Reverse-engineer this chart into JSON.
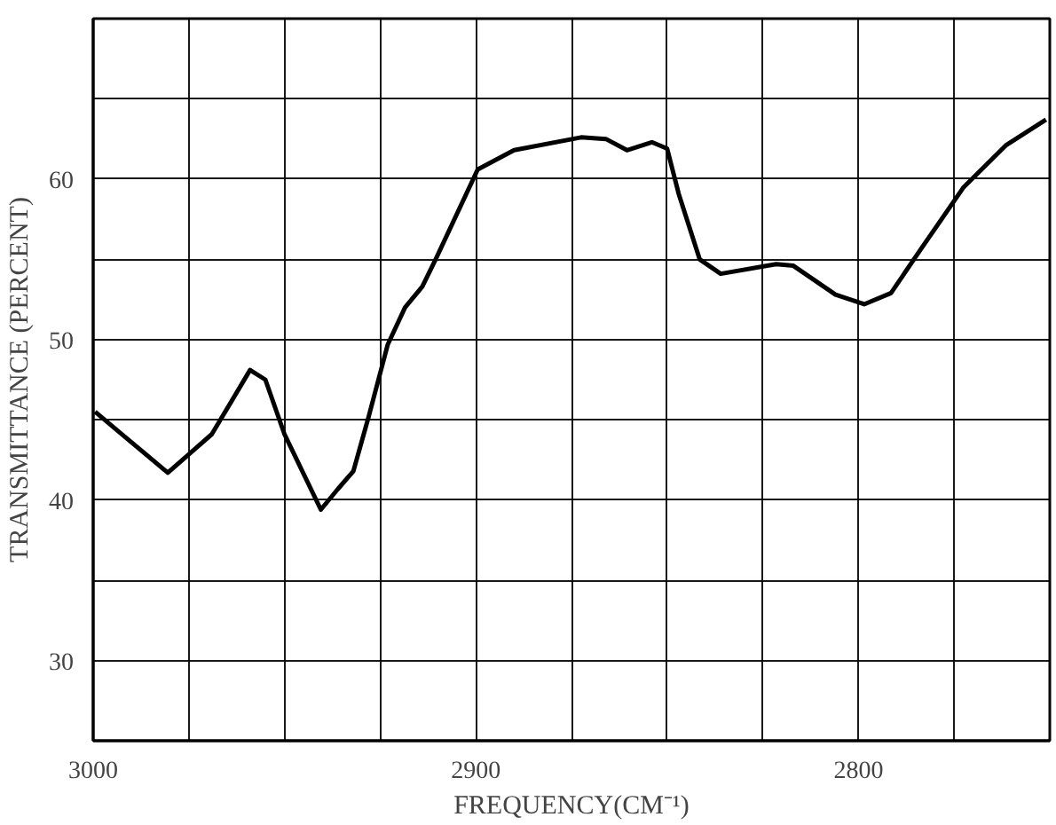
{
  "chart_data": {
    "type": "line",
    "xlabel": "FREQUENCY(CM⁻¹)",
    "ylabel": "TRANSMITTANCE (PERCENT)",
    "xlim": [
      3000,
      2750
    ],
    "ylim": [
      25,
      70
    ],
    "xticks": [
      3000,
      {
        "value": 2975,
        "label": null
      },
      {
        "value": 2950,
        "label": null
      },
      {
        "value": 2925,
        "label": null
      },
      2900,
      {
        "value": 2875,
        "label": null
      },
      {
        "value": 2850,
        "label": null
      },
      {
        "value": 2825,
        "label": null
      },
      2800,
      {
        "value": 2775,
        "label": null
      }
    ],
    "yticks": [
      {
        "value": 25,
        "label": null
      },
      30,
      {
        "value": 35,
        "label": null
      },
      40,
      {
        "value": 45,
        "label": null
      },
      50,
      {
        "value": 55,
        "label": null
      },
      60,
      {
        "value": 65,
        "label": null
      },
      {
        "value": 70,
        "label": null
      }
    ],
    "grid": true,
    "marker": "none",
    "line_style": "solid",
    "series": [
      {
        "color": "#000000",
        "x": [
          2999.5,
          2994,
          2980.5,
          2969,
          2959,
          2955,
          2950,
          2940.5,
          2936,
          2932,
          2928,
          2923,
          2918.5,
          2914,
          2910.5,
          2899.5,
          2890,
          2872.5,
          2866,
          2860.5,
          2854,
          2850,
          2847,
          2841.5,
          2836,
          2821.5,
          2817,
          2806,
          2798.5,
          2791.5,
          2783.5,
          2772.5,
          2761.5,
          2751
        ],
        "values": [
          45.5,
          44.4,
          41.7,
          44.1,
          48.1,
          47.5,
          44.1,
          39.4,
          40.7,
          41.8,
          45.2,
          49.7,
          52.0,
          53.3,
          55.0,
          60.6,
          61.8,
          62.6,
          62.5,
          61.8,
          62.3,
          61.9,
          59.1,
          55.0,
          54.1,
          54.7,
          54.6,
          52.8,
          52.2,
          52.9,
          55.7,
          59.5,
          62.1,
          63.7
        ]
      }
    ]
  }
}
